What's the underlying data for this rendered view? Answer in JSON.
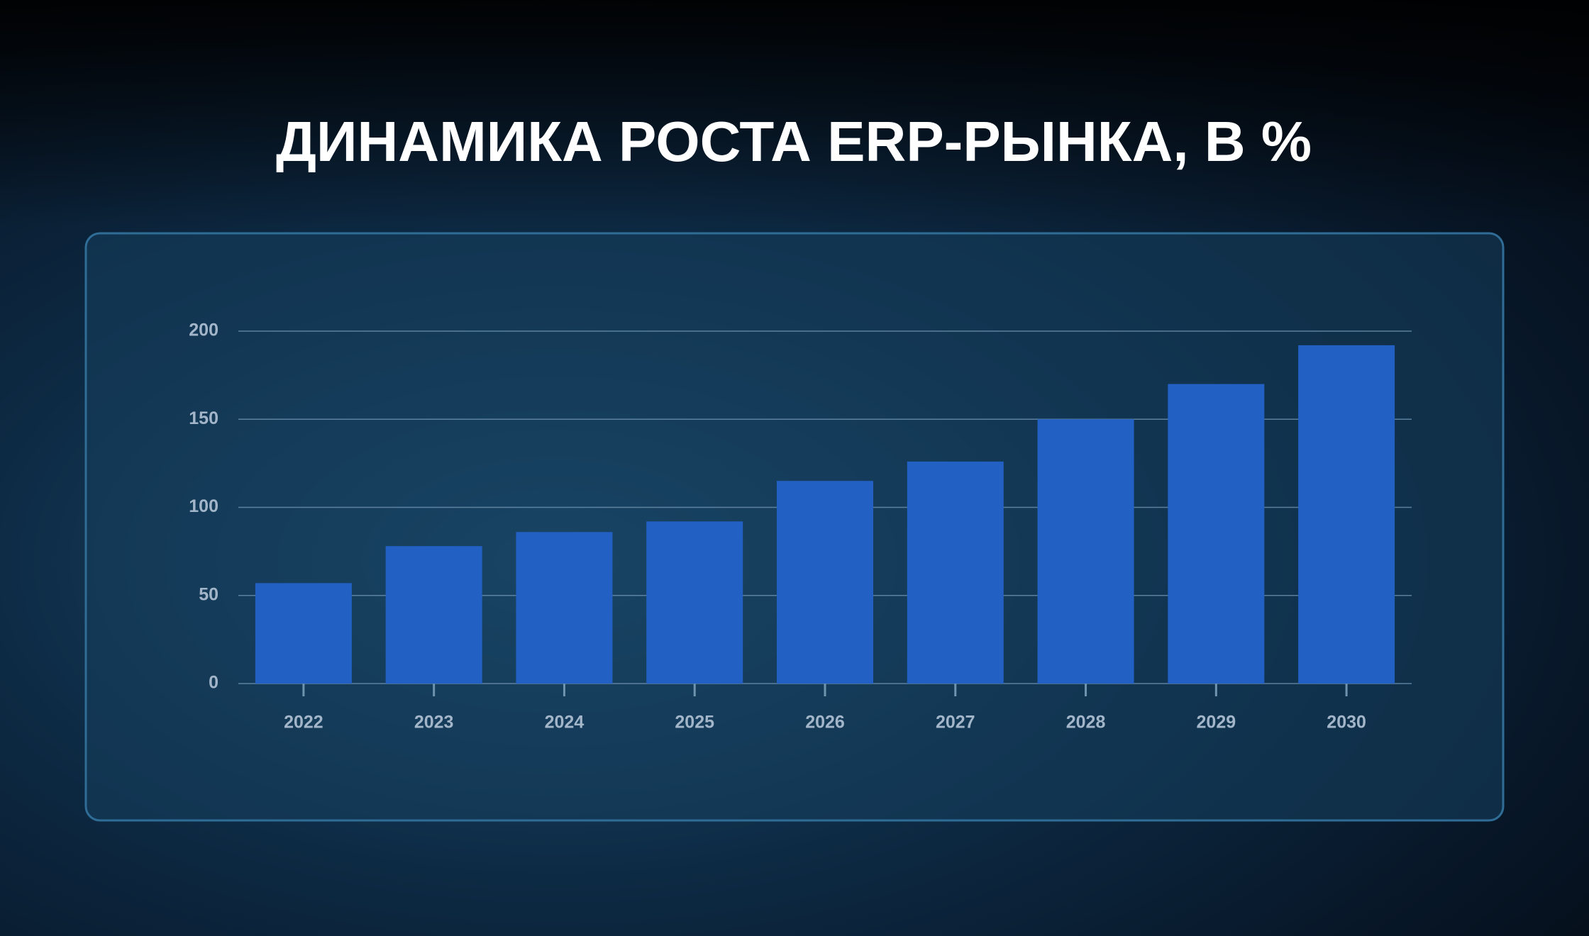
{
  "chart_data": {
    "type": "bar",
    "title": "ДИНАМИКА РОСТА ERP-РЫНКА, В %",
    "categories": [
      "2022",
      "2023",
      "2024",
      "2025",
      "2026",
      "2027",
      "2028",
      "2029",
      "2030"
    ],
    "values": [
      57,
      78,
      86,
      92,
      115,
      126,
      150,
      170,
      192
    ],
    "color": "#2360c4",
    "ylim": [
      0,
      200
    ],
    "yticks": [
      0,
      50,
      100,
      150,
      200
    ],
    "grid": true
  }
}
